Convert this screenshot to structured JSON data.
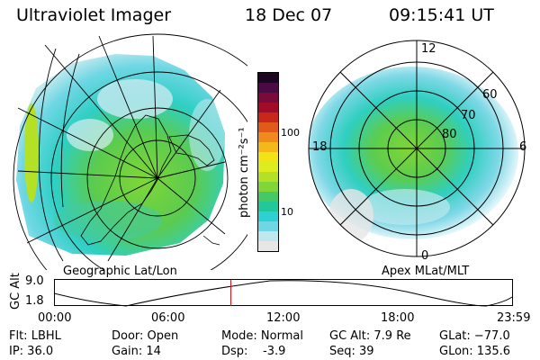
{
  "header": {
    "title": "Ultraviolet Imager",
    "date": "18 Dec 07",
    "time": "09:15:41 UT"
  },
  "colorbar": {
    "unit_label": "photon cm⁻²s⁻¹",
    "ticks": [
      "100",
      "10"
    ],
    "colors": [
      "#e6e6e6",
      "#bfe8ee",
      "#6fd7e4",
      "#2fcfd6",
      "#22c79a",
      "#44c966",
      "#7fd636",
      "#b4e026",
      "#dcec1e",
      "#f2e216",
      "#f4b81a",
      "#f08a1c",
      "#e05a1a",
      "#c8281c",
      "#a00c2a",
      "#7a0a3a",
      "#4a0a44",
      "#1a0620"
    ]
  },
  "left_map": {
    "caption": "Geographic Lat/Lon"
  },
  "right_map": {
    "caption": "Apex MLat/MLT",
    "mlt_labels": {
      "top": "12",
      "left": "18",
      "right": "6",
      "bottom": "0"
    },
    "lat_labels": [
      "60",
      "70",
      "80"
    ]
  },
  "altitude_plot": {
    "ylabel": "GC Alt",
    "yticks": [
      "9.0",
      "1.8"
    ],
    "xticks": [
      "00:00",
      "06:00",
      "12:00",
      "18:00",
      "23:59"
    ],
    "current_time_fraction": 0.386
  },
  "info": {
    "filter": "Flt: LBHL",
    "ip": "IP: 36.0",
    "door": "Door: Open",
    "gain": "Gain: 14",
    "mode": "Mode: Normal",
    "dsp": "Dsp:",
    "dsp_value": "-3.9",
    "gc_alt": "GC Alt: 7.9 Re",
    "seq": "Seq: 39",
    "glat": "GLat: −77.0",
    "glon": "GLon: 135.6"
  }
}
